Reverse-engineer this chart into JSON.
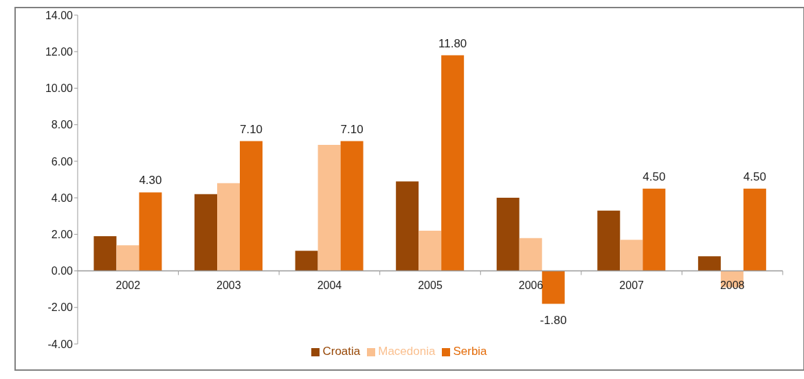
{
  "chart_data": {
    "type": "bar",
    "categories": [
      "2002",
      "2003",
      "2004",
      "2005",
      "2006",
      "2007",
      "2008"
    ],
    "series": [
      {
        "name": "Croatia",
        "color": "#974706",
        "values": [
          1.9,
          4.2,
          1.1,
          4.9,
          4.0,
          3.3,
          0.8
        ]
      },
      {
        "name": "Macedonia",
        "color": "#fac090",
        "values": [
          1.4,
          4.8,
          6.9,
          2.2,
          1.8,
          1.7,
          -0.9
        ]
      },
      {
        "name": "Serbia",
        "color": "#e46c0a",
        "values": [
          4.3,
          7.1,
          7.1,
          11.8,
          -1.8,
          4.5,
          4.5
        ],
        "value_labels": [
          "4.30",
          "7.10",
          "7.10",
          "11.80",
          "-1.80",
          "4.50",
          "4.50"
        ]
      }
    ],
    "ylim": [
      -4,
      14
    ],
    "yticks": [
      {
        "value": -4,
        "label": "-4.00"
      },
      {
        "value": -2,
        "label": "-2.00"
      },
      {
        "value": 0,
        "label": "0.00"
      },
      {
        "value": 2,
        "label": "2.00"
      },
      {
        "value": 4,
        "label": "4.00"
      },
      {
        "value": 6,
        "label": "6.00"
      },
      {
        "value": 8,
        "label": "8.00"
      },
      {
        "value": 10,
        "label": "10.00"
      },
      {
        "value": 12,
        "label": "12.00"
      },
      {
        "value": 14,
        "label": "14.00"
      }
    ],
    "grid": false,
    "legend": "bottom"
  }
}
